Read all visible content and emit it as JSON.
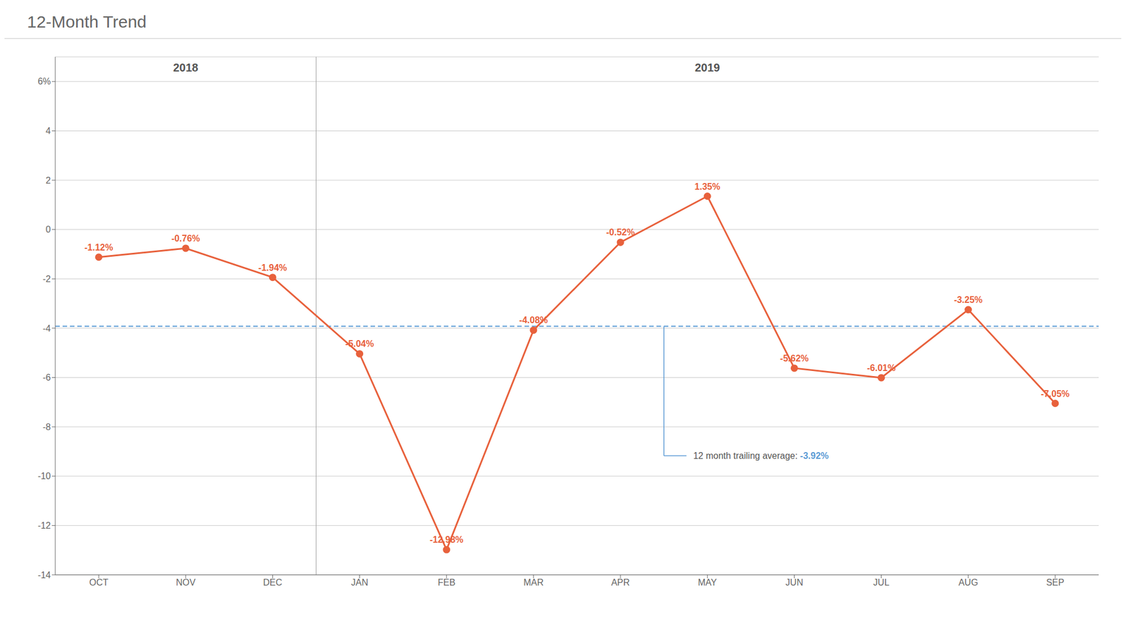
{
  "chart_data": {
    "type": "line",
    "title": "12-Month Trend",
    "categories": [
      "OCT",
      "NOV",
      "DEC",
      "JAN",
      "FEB",
      "MAR",
      "APR",
      "MAY",
      "JUN",
      "JUL",
      "AUG",
      "SEP"
    ],
    "values": [
      -1.12,
      -0.76,
      -1.94,
      -5.04,
      -12.98,
      -4.08,
      -0.52,
      1.35,
      -5.62,
      -6.01,
      -3.25,
      -7.05
    ],
    "value_labels": [
      "-1.12%",
      "-0.76%",
      "-1.94%",
      "-5.04%",
      "-12.98%",
      "-4.08%",
      "-0.52%",
      "1.35%",
      "-5.62%",
      "-6.01%",
      "-3.25%",
      "-7.05%"
    ],
    "data_labels": true,
    "color": "#E8613C",
    "marker": "circle",
    "ylim": [
      -14,
      7
    ],
    "yticks": [
      -14,
      -12,
      -10,
      -8,
      -6,
      -4,
      -2,
      0,
      2,
      4,
      {
        "value": 6,
        "label": "6%"
      }
    ],
    "grid": true,
    "annotations": [
      {
        "type": "hline",
        "y": -3.92,
        "text": "12 month trailing average: ",
        "value_label": "-3.92%",
        "color": "#5B9BD5",
        "line_style": "dashed"
      },
      {
        "type": "span",
        "text": "2018",
        "from": "OCT",
        "to": "DEC"
      },
      {
        "type": "span",
        "text": "2019",
        "from": "JAN",
        "to": "SEP"
      }
    ]
  }
}
